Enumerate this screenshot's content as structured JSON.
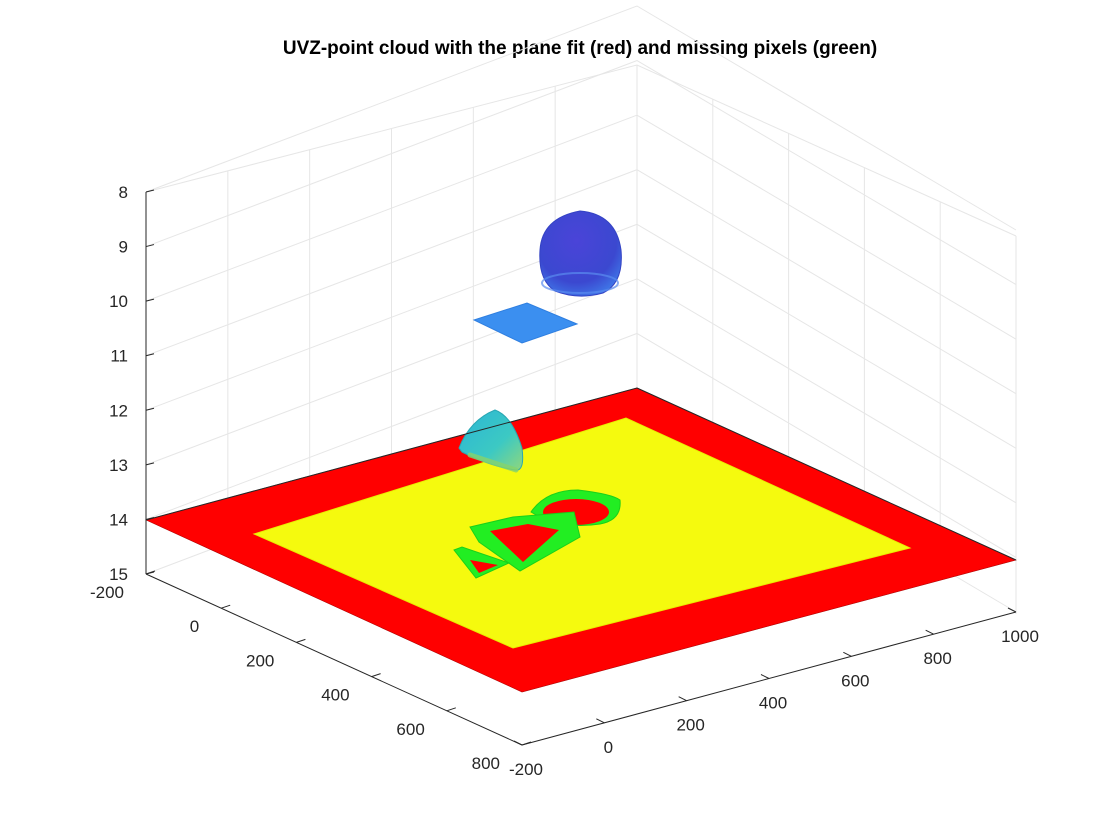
{
  "chart_data": {
    "type": "scatter3d",
    "title": "UVZ-point cloud with the plane fit (red) and missing pixels (green)",
    "xlabel": "",
    "ylabel": "",
    "zlabel": "",
    "x_ticks": [
      "-200",
      "0",
      "200",
      "400",
      "600",
      "800",
      "1000"
    ],
    "y_ticks": [
      "-200",
      "0",
      "200",
      "400",
      "600",
      "800"
    ],
    "z_ticks": [
      "8",
      "9",
      "10",
      "11",
      "12",
      "13",
      "14",
      "15"
    ],
    "xlim": [
      -200,
      1000
    ],
    "ylim": [
      -200,
      800
    ],
    "zlim": [
      8,
      15
    ],
    "z_direction": "reverse",
    "grid": true,
    "colors": {
      "plane_fit": "#ff0000",
      "point_cloud_floor": "#f5fa0e",
      "missing_pixels": "#22ee22",
      "hemisphere_top": "#3f3fcf",
      "square_patch": "#3b8ff0",
      "cone": "#3cc9c3"
    },
    "objects": [
      {
        "name": "plane-fit",
        "kind": "plane",
        "x": [
          -200,
          1000
        ],
        "y": [
          -200,
          800
        ],
        "z": 14
      },
      {
        "name": "floor-points",
        "kind": "surface",
        "x": [
          -100,
          900
        ],
        "y": [
          -100,
          700
        ],
        "z": 14
      },
      {
        "name": "hemisphere",
        "kind": "hemisphere",
        "center_x": 300,
        "center_y": -50,
        "radius": 120,
        "z_top": 8.4,
        "z_base": 9.9
      },
      {
        "name": "square-patch",
        "kind": "patch",
        "x": [
          380,
          620
        ],
        "y": [
          -60,
          180
        ],
        "z": 10.2
      },
      {
        "name": "cone",
        "kind": "cone",
        "center_x": 600,
        "center_y": 500,
        "radius": 70,
        "z_top": 12.1,
        "z_base": 13.0
      },
      {
        "name": "missing-circle",
        "kind": "hole",
        "shape": "circle",
        "center_x": 450,
        "center_y": 300,
        "radius": 100
      },
      {
        "name": "missing-square",
        "kind": "hole",
        "shape": "square",
        "center_x": 450,
        "center_y": 500,
        "half_size": 100
      },
      {
        "name": "missing-triangle",
        "kind": "hole",
        "shape": "triangle",
        "center_x": 450,
        "center_y": 700,
        "half_size": 90
      }
    ]
  }
}
